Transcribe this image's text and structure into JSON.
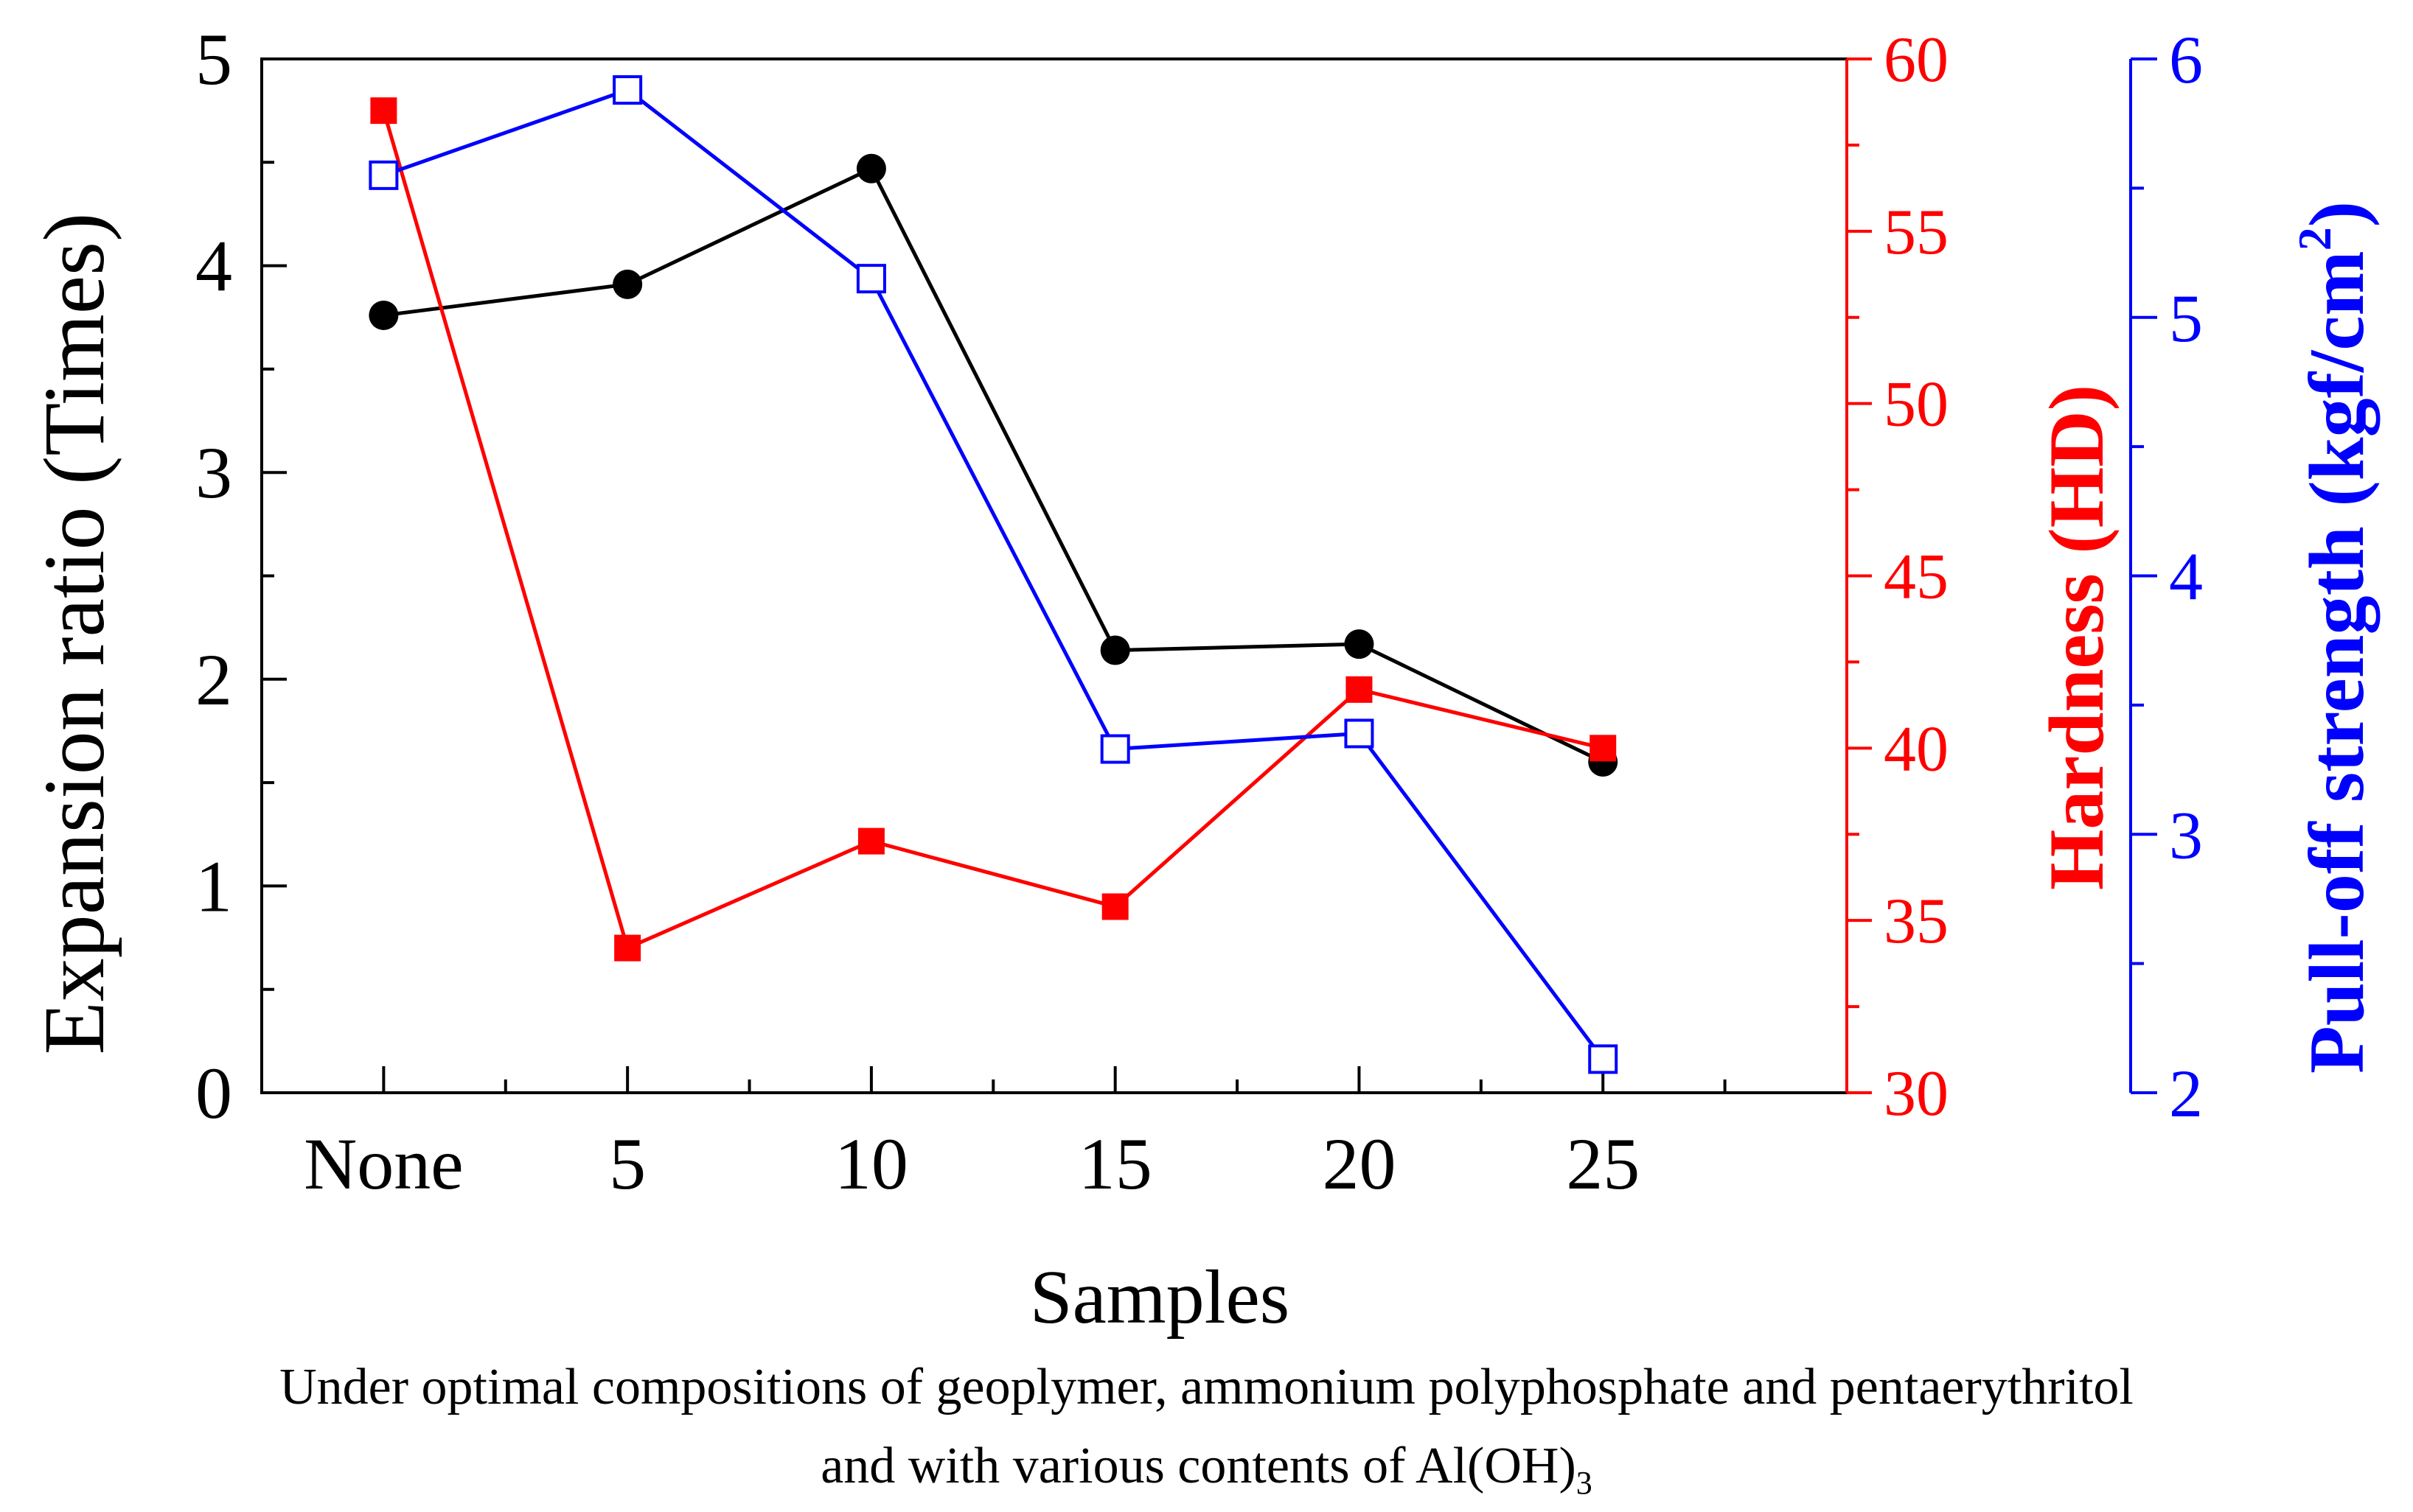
{
  "chart_data": {
    "type": "line",
    "categories": [
      "None",
      "5",
      "10",
      "15",
      "20",
      "25"
    ],
    "xlabel": "Samples",
    "axes": {
      "left": {
        "label": "Expansion ratio (Times)",
        "ylim": [
          0,
          5
        ],
        "ticks": [
          "0",
          "1",
          "2",
          "3",
          "4",
          "5"
        ],
        "color": "#000000"
      },
      "right1": {
        "label": "Hardness (HD)",
        "ylim": [
          30,
          60
        ],
        "ticks": [
          "30",
          "35",
          "40",
          "45",
          "50",
          "55",
          "60"
        ],
        "color": "#ff0000"
      },
      "right2": {
        "label_main": "Pull-off strength (kgf/cm",
        "label_sup": "2",
        "label_end": ")",
        "ylim": [
          2,
          6
        ],
        "ticks": [
          "2",
          "3",
          "4",
          "5",
          "6"
        ],
        "color": "#0000ff"
      }
    },
    "series": [
      {
        "name": "Expansion ratio",
        "axis": "left",
        "color": "#000000",
        "marker": "filled-circle",
        "values": [
          3.76,
          3.91,
          4.47,
          2.14,
          2.17,
          1.6
        ]
      },
      {
        "name": "Hardness",
        "axis": "right1",
        "color": "#ff0000",
        "marker": "filled-square",
        "values": [
          58.5,
          34.2,
          37.3,
          35.4,
          41.7,
          40.0
        ]
      },
      {
        "name": "Pull-off strength",
        "axis": "right2",
        "color": "#0000ff",
        "marker": "open-square",
        "values": [
          5.55,
          5.88,
          5.15,
          3.33,
          3.39,
          2.13
        ]
      }
    ]
  },
  "caption": {
    "line1": "Under optimal compositions of geoplymer, ammonium polyphosphate and pentaerythritol",
    "line2_main": "and with various contents of Al(OH)",
    "line2_sub": "3"
  }
}
